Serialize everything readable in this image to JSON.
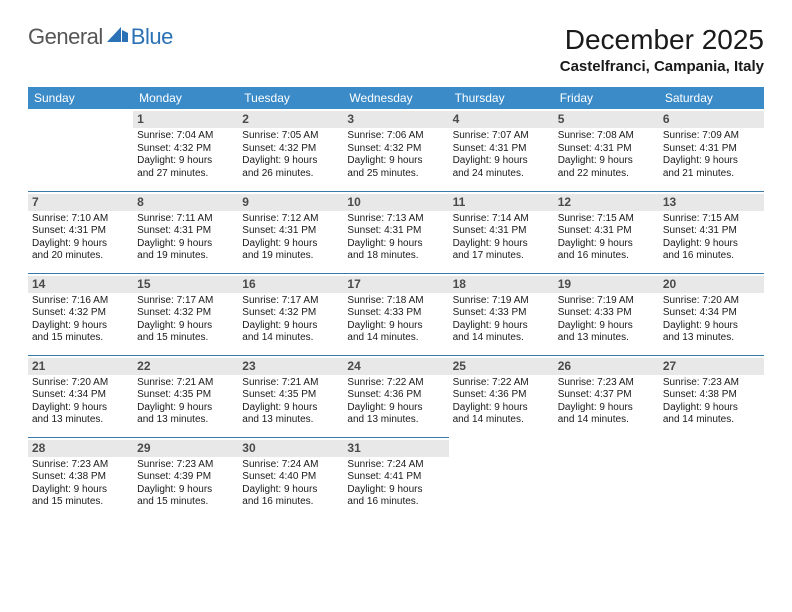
{
  "logo": {
    "general": "General",
    "blue": "Blue"
  },
  "title": "December 2025",
  "location": "Castelfranci, Campania, Italy",
  "day_headers": [
    "Sunday",
    "Monday",
    "Tuesday",
    "Wednesday",
    "Thursday",
    "Friday",
    "Saturday"
  ],
  "header_bg": "#3b8bc8",
  "header_text_color": "#ffffff",
  "row_border_color": "#3b7aa8",
  "daynum_bg": "#e8e8e8",
  "weeks": [
    [
      {
        "n": "",
        "sunrise": "",
        "sunset": "",
        "dayl1": "",
        "dayl2": "",
        "empty": true
      },
      {
        "n": "1",
        "sunrise": "Sunrise: 7:04 AM",
        "sunset": "Sunset: 4:32 PM",
        "dayl1": "Daylight: 9 hours",
        "dayl2": "and 27 minutes."
      },
      {
        "n": "2",
        "sunrise": "Sunrise: 7:05 AM",
        "sunset": "Sunset: 4:32 PM",
        "dayl1": "Daylight: 9 hours",
        "dayl2": "and 26 minutes."
      },
      {
        "n": "3",
        "sunrise": "Sunrise: 7:06 AM",
        "sunset": "Sunset: 4:32 PM",
        "dayl1": "Daylight: 9 hours",
        "dayl2": "and 25 minutes."
      },
      {
        "n": "4",
        "sunrise": "Sunrise: 7:07 AM",
        "sunset": "Sunset: 4:31 PM",
        "dayl1": "Daylight: 9 hours",
        "dayl2": "and 24 minutes."
      },
      {
        "n": "5",
        "sunrise": "Sunrise: 7:08 AM",
        "sunset": "Sunset: 4:31 PM",
        "dayl1": "Daylight: 9 hours",
        "dayl2": "and 22 minutes."
      },
      {
        "n": "6",
        "sunrise": "Sunrise: 7:09 AM",
        "sunset": "Sunset: 4:31 PM",
        "dayl1": "Daylight: 9 hours",
        "dayl2": "and 21 minutes."
      }
    ],
    [
      {
        "n": "7",
        "sunrise": "Sunrise: 7:10 AM",
        "sunset": "Sunset: 4:31 PM",
        "dayl1": "Daylight: 9 hours",
        "dayl2": "and 20 minutes."
      },
      {
        "n": "8",
        "sunrise": "Sunrise: 7:11 AM",
        "sunset": "Sunset: 4:31 PM",
        "dayl1": "Daylight: 9 hours",
        "dayl2": "and 19 minutes."
      },
      {
        "n": "9",
        "sunrise": "Sunrise: 7:12 AM",
        "sunset": "Sunset: 4:31 PM",
        "dayl1": "Daylight: 9 hours",
        "dayl2": "and 19 minutes."
      },
      {
        "n": "10",
        "sunrise": "Sunrise: 7:13 AM",
        "sunset": "Sunset: 4:31 PM",
        "dayl1": "Daylight: 9 hours",
        "dayl2": "and 18 minutes."
      },
      {
        "n": "11",
        "sunrise": "Sunrise: 7:14 AM",
        "sunset": "Sunset: 4:31 PM",
        "dayl1": "Daylight: 9 hours",
        "dayl2": "and 17 minutes."
      },
      {
        "n": "12",
        "sunrise": "Sunrise: 7:15 AM",
        "sunset": "Sunset: 4:31 PM",
        "dayl1": "Daylight: 9 hours",
        "dayl2": "and 16 minutes."
      },
      {
        "n": "13",
        "sunrise": "Sunrise: 7:15 AM",
        "sunset": "Sunset: 4:31 PM",
        "dayl1": "Daylight: 9 hours",
        "dayl2": "and 16 minutes."
      }
    ],
    [
      {
        "n": "14",
        "sunrise": "Sunrise: 7:16 AM",
        "sunset": "Sunset: 4:32 PM",
        "dayl1": "Daylight: 9 hours",
        "dayl2": "and 15 minutes."
      },
      {
        "n": "15",
        "sunrise": "Sunrise: 7:17 AM",
        "sunset": "Sunset: 4:32 PM",
        "dayl1": "Daylight: 9 hours",
        "dayl2": "and 15 minutes."
      },
      {
        "n": "16",
        "sunrise": "Sunrise: 7:17 AM",
        "sunset": "Sunset: 4:32 PM",
        "dayl1": "Daylight: 9 hours",
        "dayl2": "and 14 minutes."
      },
      {
        "n": "17",
        "sunrise": "Sunrise: 7:18 AM",
        "sunset": "Sunset: 4:33 PM",
        "dayl1": "Daylight: 9 hours",
        "dayl2": "and 14 minutes."
      },
      {
        "n": "18",
        "sunrise": "Sunrise: 7:19 AM",
        "sunset": "Sunset: 4:33 PM",
        "dayl1": "Daylight: 9 hours",
        "dayl2": "and 14 minutes."
      },
      {
        "n": "19",
        "sunrise": "Sunrise: 7:19 AM",
        "sunset": "Sunset: 4:33 PM",
        "dayl1": "Daylight: 9 hours",
        "dayl2": "and 13 minutes."
      },
      {
        "n": "20",
        "sunrise": "Sunrise: 7:20 AM",
        "sunset": "Sunset: 4:34 PM",
        "dayl1": "Daylight: 9 hours",
        "dayl2": "and 13 minutes."
      }
    ],
    [
      {
        "n": "21",
        "sunrise": "Sunrise: 7:20 AM",
        "sunset": "Sunset: 4:34 PM",
        "dayl1": "Daylight: 9 hours",
        "dayl2": "and 13 minutes."
      },
      {
        "n": "22",
        "sunrise": "Sunrise: 7:21 AM",
        "sunset": "Sunset: 4:35 PM",
        "dayl1": "Daylight: 9 hours",
        "dayl2": "and 13 minutes."
      },
      {
        "n": "23",
        "sunrise": "Sunrise: 7:21 AM",
        "sunset": "Sunset: 4:35 PM",
        "dayl1": "Daylight: 9 hours",
        "dayl2": "and 13 minutes."
      },
      {
        "n": "24",
        "sunrise": "Sunrise: 7:22 AM",
        "sunset": "Sunset: 4:36 PM",
        "dayl1": "Daylight: 9 hours",
        "dayl2": "and 13 minutes."
      },
      {
        "n": "25",
        "sunrise": "Sunrise: 7:22 AM",
        "sunset": "Sunset: 4:36 PM",
        "dayl1": "Daylight: 9 hours",
        "dayl2": "and 14 minutes."
      },
      {
        "n": "26",
        "sunrise": "Sunrise: 7:23 AM",
        "sunset": "Sunset: 4:37 PM",
        "dayl1": "Daylight: 9 hours",
        "dayl2": "and 14 minutes."
      },
      {
        "n": "27",
        "sunrise": "Sunrise: 7:23 AM",
        "sunset": "Sunset: 4:38 PM",
        "dayl1": "Daylight: 9 hours",
        "dayl2": "and 14 minutes."
      }
    ],
    [
      {
        "n": "28",
        "sunrise": "Sunrise: 7:23 AM",
        "sunset": "Sunset: 4:38 PM",
        "dayl1": "Daylight: 9 hours",
        "dayl2": "and 15 minutes."
      },
      {
        "n": "29",
        "sunrise": "Sunrise: 7:23 AM",
        "sunset": "Sunset: 4:39 PM",
        "dayl1": "Daylight: 9 hours",
        "dayl2": "and 15 minutes."
      },
      {
        "n": "30",
        "sunrise": "Sunrise: 7:24 AM",
        "sunset": "Sunset: 4:40 PM",
        "dayl1": "Daylight: 9 hours",
        "dayl2": "and 16 minutes."
      },
      {
        "n": "31",
        "sunrise": "Sunrise: 7:24 AM",
        "sunset": "Sunset: 4:41 PM",
        "dayl1": "Daylight: 9 hours",
        "dayl2": "and 16 minutes."
      },
      {
        "n": "",
        "sunrise": "",
        "sunset": "",
        "dayl1": "",
        "dayl2": "",
        "empty": true
      },
      {
        "n": "",
        "sunrise": "",
        "sunset": "",
        "dayl1": "",
        "dayl2": "",
        "empty": true
      },
      {
        "n": "",
        "sunrise": "",
        "sunset": "",
        "dayl1": "",
        "dayl2": "",
        "empty": true
      }
    ]
  ]
}
